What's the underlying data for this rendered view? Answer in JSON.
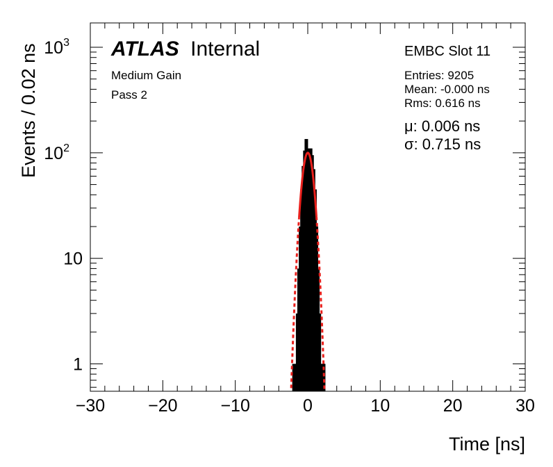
{
  "chart_data": {
    "type": "histogram",
    "xlabel": "Time [ns]",
    "ylabel": "Events / 0.02 ns",
    "xlim": [
      -30,
      30
    ],
    "ylim": [
      0.55,
      1700
    ],
    "y_scale": "log",
    "x_ticks": [
      {
        "value": -30,
        "label": "−30"
      },
      {
        "value": -20,
        "label": "−20"
      },
      {
        "value": -10,
        "label": "−10"
      },
      {
        "value": 0,
        "label": "0"
      },
      {
        "value": 10,
        "label": "10"
      },
      {
        "value": 20,
        "label": "20"
      },
      {
        "value": 30,
        "label": "30"
      }
    ],
    "y_ticks": [
      {
        "value": 1,
        "label": "1"
      },
      {
        "value": 10,
        "label": "10"
      },
      {
        "value": 100,
        "label": "10",
        "exponent": "2"
      },
      {
        "value": 1000,
        "label": "10",
        "exponent": "3"
      }
    ],
    "histogram": {
      "color": "#000000",
      "x": [
        -1.9,
        -1.6,
        -1.4,
        -1.2,
        -1.0,
        -0.8,
        -0.6,
        -0.4,
        -0.2,
        0.0,
        0.2,
        0.4,
        0.6,
        0.8,
        1.0,
        1.2,
        1.4,
        1.6,
        1.8,
        2.0,
        2.2
      ],
      "y": [
        1,
        1,
        3,
        8,
        20,
        45,
        75,
        105,
        135,
        110,
        100,
        110,
        95,
        70,
        45,
        20,
        8,
        3,
        1,
        1,
        1
      ]
    },
    "fit": {
      "color": "#e8201c",
      "mu": 0.006,
      "sigma": 0.715,
      "amplitude": 100,
      "solid_range": [
        -1.2,
        1.2
      ],
      "dashed_range": [
        -2.6,
        2.6
      ]
    },
    "experiment_bold": "ATLAS",
    "experiment_status": "Internal",
    "info_lines": [
      "Medium Gain",
      "Pass 2"
    ],
    "slot_label": "EMBC Slot 11",
    "stats": [
      "Entries: 9205",
      "Mean: -0.000 ns",
      "Rms: 0.616 ns"
    ],
    "fit_results": [
      "μ: 0.006 ns",
      "σ: 0.715 ns"
    ]
  }
}
